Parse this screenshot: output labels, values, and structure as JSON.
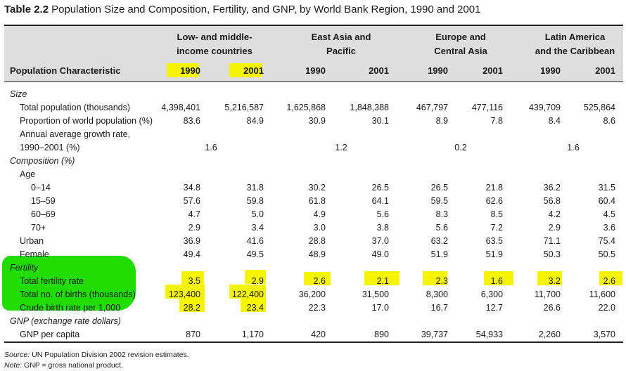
{
  "title": {
    "label": "Table 2.2",
    "text": "Population Size and Composition, Fertility, and GNP, by World Bank Region, 1990 and 2001"
  },
  "header": {
    "row_header": "Population Characteristic",
    "groups": [
      {
        "line1": "Low- and middle-",
        "line2": "income countries",
        "years": [
          "1990",
          "2001"
        ]
      },
      {
        "line1": "East Asia and",
        "line2": "Pacific",
        "years": [
          "1990",
          "2001"
        ]
      },
      {
        "line1": "Europe and",
        "line2": "Central Asia",
        "years": [
          "1990",
          "2001"
        ]
      },
      {
        "line1": "Latin America",
        "line2": "and the Caribbean",
        "years": [
          "1990",
          "2001"
        ]
      }
    ]
  },
  "rows": [
    {
      "label": "Size",
      "section": true
    },
    {
      "label": "Total population (thousands)",
      "values": [
        "4,398,401",
        "5,216,587",
        "1,625,868",
        "1,848,388",
        "467,797",
        "477,116",
        "439,709",
        "525,864"
      ]
    },
    {
      "label": "Proportion of world population (%)",
      "values": [
        "83.6",
        "84.9",
        "30.9",
        "30.1",
        "8.9",
        "7.8",
        "8.4",
        "8.6"
      ]
    },
    {
      "label": "Annual average growth rate,"
    },
    {
      "label": "1990–2001 (%)",
      "spans": [
        "1.6",
        "1.2",
        "0.2",
        "1.6"
      ]
    },
    {
      "label": "Composition (%)",
      "section": true
    },
    {
      "label": "Age"
    },
    {
      "label": "0–14",
      "values": [
        "34.8",
        "31.8",
        "30.2",
        "26.5",
        "26.5",
        "21.8",
        "36.2",
        "31.5"
      ]
    },
    {
      "label": "15–59",
      "values": [
        "57.6",
        "59.8",
        "61.8",
        "64.1",
        "59.5",
        "62.6",
        "56.8",
        "60.4"
      ]
    },
    {
      "label": "60–69",
      "values": [
        "4.7",
        "5.0",
        "4.9",
        "5.6",
        "8.3",
        "8.5",
        "4.2",
        "4.5"
      ]
    },
    {
      "label": "70+",
      "values": [
        "2.9",
        "3.4",
        "3.0",
        "3.8",
        "5.6",
        "7.2",
        "2.9",
        "3.6"
      ]
    },
    {
      "label": "Urban",
      "values": [
        "36.9",
        "41.6",
        "28.8",
        "37.0",
        "63.2",
        "63.5",
        "71.1",
        "75.4"
      ]
    },
    {
      "label": "Female",
      "values": [
        "49.4",
        "49.5",
        "48.9",
        "49.0",
        "51.9",
        "51.9",
        "50.3",
        "50.5"
      ]
    },
    {
      "label": "Fertility",
      "section": true
    },
    {
      "label": "Total fertility rate",
      "values": [
        "3.5",
        "2.9",
        "2.6",
        "2.1",
        "2.3",
        "1.6",
        "3.2",
        "2.6"
      ]
    },
    {
      "label": "Total no. of births (thousands)",
      "values": [
        "123,400",
        "122,400",
        "36,200",
        "31,500",
        "8,300",
        "6,300",
        "11,700",
        "11,600"
      ]
    },
    {
      "label": "Crude birth rate per 1,000",
      "values": [
        "28.2",
        "23.4",
        "22.3",
        "17.0",
        "16.7",
        "12.7",
        "26.6",
        "22.0"
      ]
    },
    {
      "label": "GNP (exchange rate dollars)",
      "section": true
    },
    {
      "label": "GNP per capita",
      "values": [
        "870",
        "1,170",
        "420",
        "890",
        "39,737",
        "54,933",
        "2,260",
        "3,570"
      ]
    }
  ],
  "footer": {
    "source_label": "Source:",
    "source_text": "UN Population Division 2002 revision estimates.",
    "note_label": "Note:",
    "note_text": "GNP = gross national product."
  },
  "highlight_colors": {
    "yellow": "#f5f500",
    "green": "#22dd00"
  }
}
